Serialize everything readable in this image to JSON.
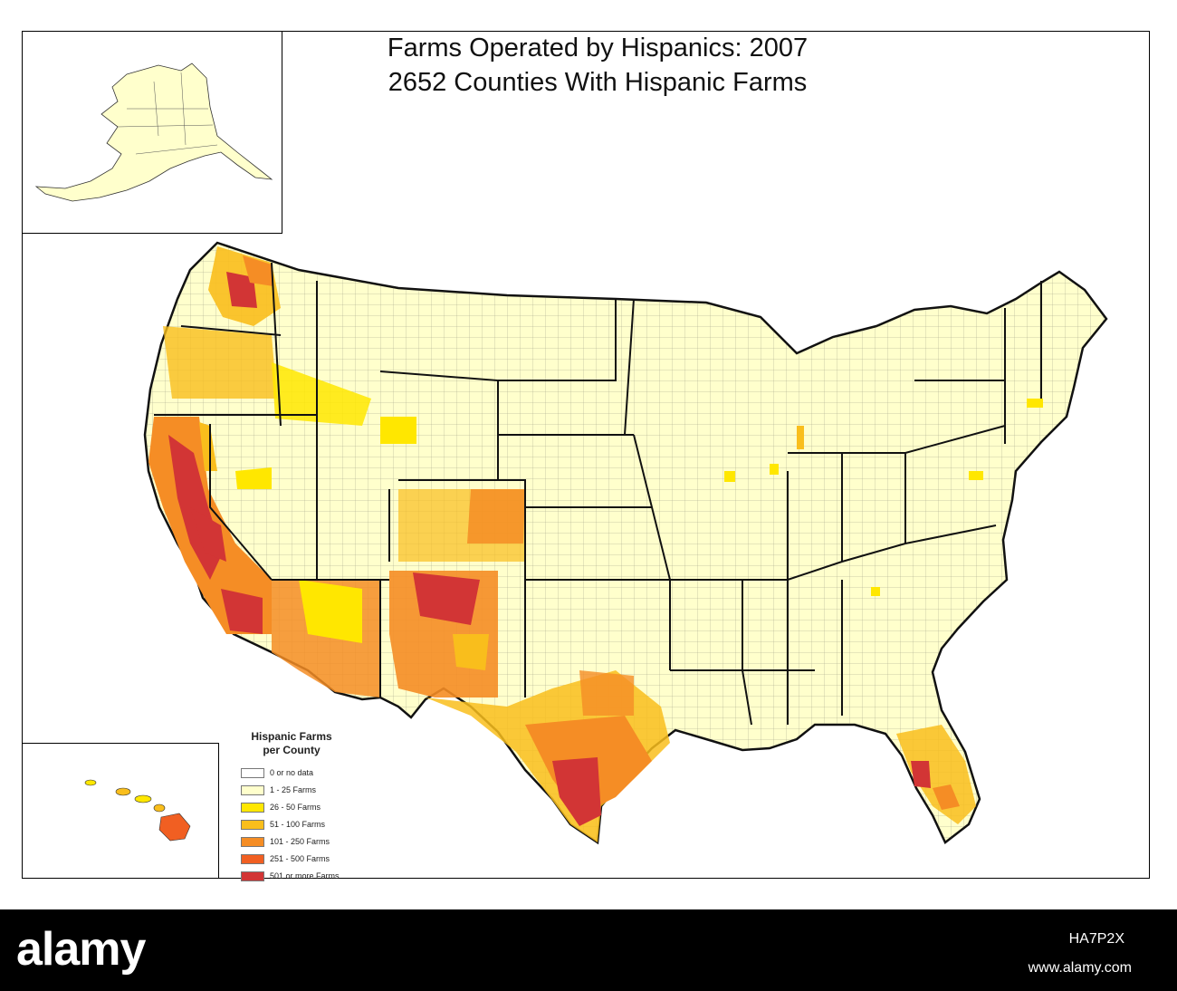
{
  "title": {
    "line1": "Farms Operated by Hispanics:  2007",
    "line2": "2652 Counties With Hispanic Farms"
  },
  "legend": {
    "title_line1": "Hispanic Farms",
    "title_line2": "per County",
    "items": [
      {
        "label": "0 or no data",
        "color": "#ffffff"
      },
      {
        "label": "1 - 25 Farms",
        "color": "#ffffcc"
      },
      {
        "label": "26 - 50 Farms",
        "color": "#ffe700"
      },
      {
        "label": "51 - 100 Farms",
        "color": "#f9be1c"
      },
      {
        "label": "101 - 250 Farms",
        "color": "#f58d25"
      },
      {
        "label": "251 - 500 Farms",
        "color": "#f15f22"
      },
      {
        "label": "501 or more Farms",
        "color": "#d23535"
      }
    ]
  },
  "insets": {
    "alaska": "Alaska",
    "hawaii": "Hawaii"
  },
  "watermark": {
    "logo": "alamy",
    "image_code": "HA7P2X",
    "url": "www.alamy.com"
  }
}
